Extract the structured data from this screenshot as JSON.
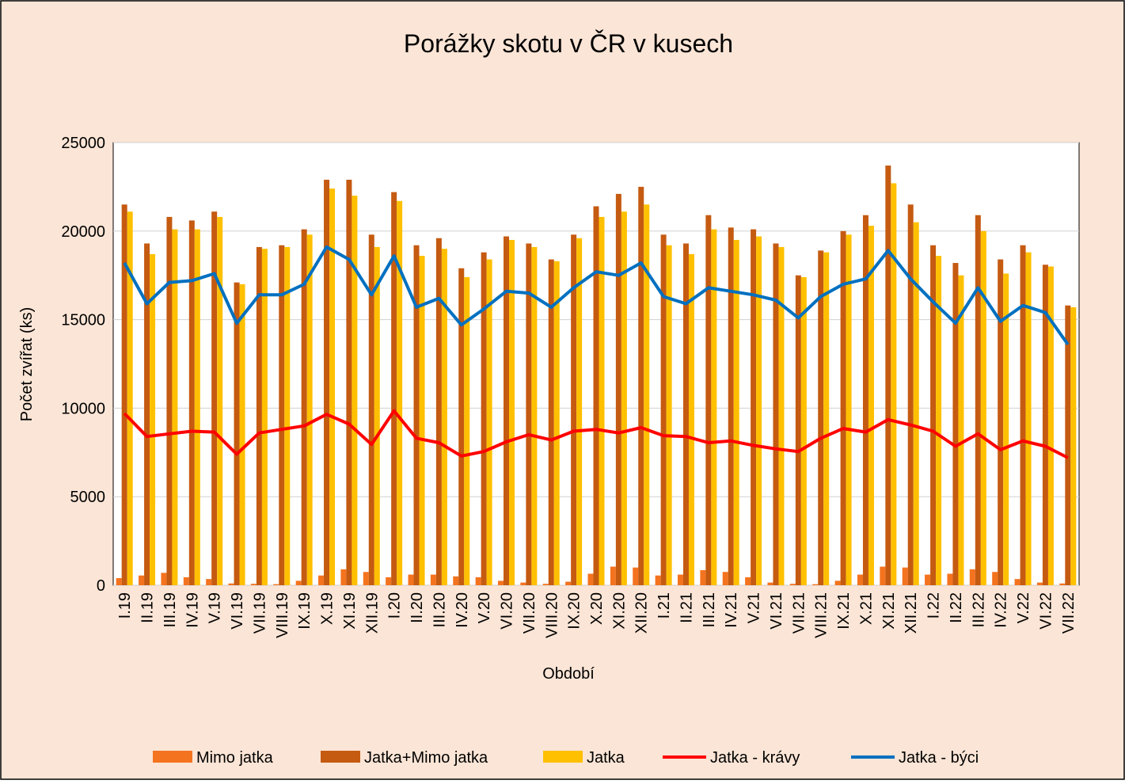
{
  "chart_data": {
    "type": "bar",
    "title": "Porážky skotu v ČR v kusech",
    "x_label": "Období",
    "y_label": "Počet zvířat (ks)",
    "categories": [
      "I.19",
      "II.19",
      "III.19",
      "IV.19",
      "V.19",
      "VI.19",
      "VII.19",
      "VIII.19",
      "IX.19",
      "X.19",
      "XI.19",
      "XII.19",
      "I.20",
      "II.20",
      "III.20",
      "IV.20",
      "V.20",
      "VI.20",
      "VII.20",
      "VIII.20",
      "IX.20",
      "X.20",
      "XI.20",
      "XII.20",
      "I.21",
      "II.21",
      "III.21",
      "IV.21",
      "V.21",
      "VI.21",
      "VII.21",
      "VIII.21",
      "IX.21",
      "X.21",
      "XI.21",
      "XII.21",
      "I.22",
      "II.22",
      "III.22",
      "IV.22",
      "V.22",
      "VI.22",
      "VII.22"
    ],
    "series": [
      {
        "name": "Mimo jatka",
        "type": "bar",
        "color": "#f4731f",
        "values": [
          400,
          550,
          700,
          450,
          350,
          100,
          80,
          60,
          250,
          550,
          900,
          750,
          450,
          600,
          600,
          500,
          450,
          250,
          150,
          80,
          200,
          650,
          1050,
          1000,
          550,
          600,
          850,
          750,
          450,
          150,
          80,
          60,
          250,
          600,
          1050,
          1000,
          600,
          650,
          900,
          750,
          350,
          150,
          100
        ]
      },
      {
        "name": "Jatka+Mimo jatka",
        "type": "bar",
        "color": "#c55a11",
        "values": [
          21500,
          19300,
          20800,
          20600,
          21100,
          17100,
          19100,
          19200,
          20100,
          22900,
          22900,
          19800,
          22200,
          19200,
          19600,
          17900,
          18800,
          19700,
          19300,
          18400,
          19800,
          21400,
          22100,
          22500,
          19800,
          19300,
          20900,
          20200,
          20100,
          19300,
          17500,
          18900,
          20000,
          20900,
          23700,
          21500,
          19200,
          18200,
          20900,
          18400,
          19200,
          18100,
          15800
        ]
      },
      {
        "name": "Jatka",
        "type": "bar",
        "color": "#ffc000",
        "values": [
          21100,
          18700,
          20100,
          20100,
          20800,
          17000,
          19000,
          19100,
          19800,
          22400,
          22000,
          19100,
          21700,
          18600,
          19000,
          17400,
          18400,
          19500,
          19100,
          18300,
          19600,
          20800,
          21100,
          21500,
          19200,
          18700,
          20100,
          19500,
          19700,
          19100,
          17400,
          18800,
          19800,
          20300,
          22700,
          20500,
          18600,
          17500,
          20000,
          17600,
          18800,
          18000,
          15700
        ]
      },
      {
        "name": "Jatka - krávy",
        "type": "line",
        "color": "#ff0000",
        "values": [
          9700,
          8400,
          8550,
          8700,
          8650,
          7400,
          8600,
          8800,
          9000,
          9650,
          9100,
          7950,
          9850,
          8300,
          8050,
          7300,
          7550,
          8100,
          8500,
          8200,
          8700,
          8800,
          8600,
          8900,
          8450,
          8400,
          8050,
          8150,
          7900,
          7700,
          7550,
          8300,
          8850,
          8650,
          9350,
          9050,
          8700,
          7850,
          8550,
          7650,
          8150,
          7850,
          7200
        ]
      },
      {
        "name": "Jatka - býci",
        "type": "line",
        "color": "#0070c0",
        "values": [
          18200,
          15900,
          17100,
          17200,
          17600,
          14800,
          16400,
          16400,
          17000,
          19100,
          18400,
          16400,
          18600,
          15700,
          16200,
          14700,
          15600,
          16600,
          16500,
          15700,
          16800,
          17700,
          17500,
          18200,
          16300,
          15900,
          16800,
          16600,
          16400,
          16100,
          15100,
          16300,
          17000,
          17300,
          18900,
          17300,
          16000,
          14800,
          16800,
          14900,
          15800,
          15400,
          13600
        ]
      }
    ],
    "ylim": [
      0,
      25000
    ],
    "yticks": [
      0,
      5000,
      10000,
      15000,
      20000,
      25000
    ],
    "grid": true,
    "legend": "bottom"
  }
}
